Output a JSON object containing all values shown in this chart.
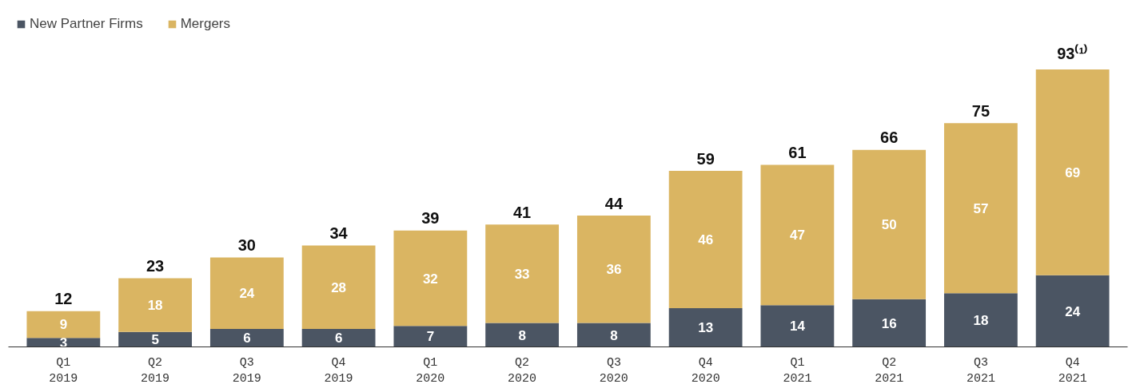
{
  "chart_data": {
    "type": "bar",
    "stacked": true,
    "categories": [
      "Q1\n2019",
      "Q2\n2019",
      "Q3\n2019",
      "Q4\n2019",
      "Q1\n2020",
      "Q2\n2020",
      "Q3\n2020",
      "Q4\n2020",
      "Q1\n2021",
      "Q2\n2021",
      "Q3\n2021",
      "Q4\n2021"
    ],
    "series": [
      {
        "name": "New Partner Firms",
        "color": "#4b5563",
        "values": [
          3,
          5,
          6,
          6,
          7,
          8,
          8,
          13,
          14,
          16,
          18,
          24
        ]
      },
      {
        "name": "Mergers",
        "color": "#dab562",
        "values": [
          9,
          18,
          24,
          28,
          32,
          33,
          36,
          46,
          47,
          50,
          57,
          69
        ]
      }
    ],
    "totals": [
      "12",
      "23",
      "30",
      "34",
      "39",
      "41",
      "44",
      "59",
      "61",
      "66",
      "75",
      "93⁽¹⁾"
    ],
    "data_labels": true,
    "legend": "top left",
    "grid": false
  }
}
